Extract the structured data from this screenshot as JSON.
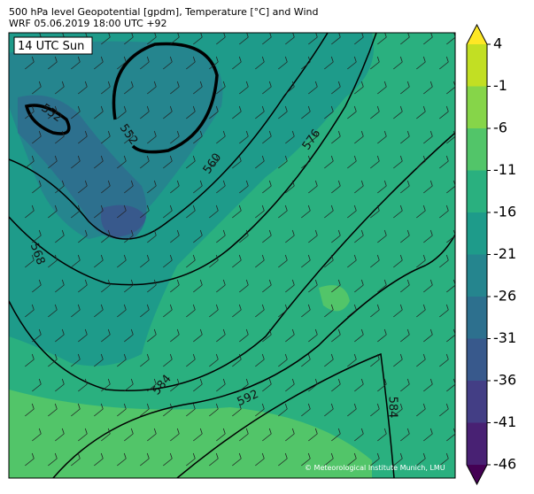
{
  "header": {
    "title": "500 hPa level Geopotential [gpdm], Temperature [°C] and Wind",
    "subtitle": "WRF 05.06.2019 18:00 UTC +92"
  },
  "map": {
    "time_label": "14 UTC Sun",
    "contour_labels": [
      552,
      552,
      560,
      568,
      576,
      584,
      592,
      584
    ],
    "credit": "© Meteorological Institute Munich, LMU"
  },
  "colorbar": {
    "lim": [
      -46,
      4
    ],
    "ticks": [
      4,
      -1,
      -6,
      -11,
      -16,
      -21,
      -26,
      -31,
      -36,
      -41,
      -46
    ],
    "colors": [
      "#440154",
      "#482173",
      "#433e85",
      "#38598c",
      "#2d708e",
      "#25858e",
      "#1e9b8a",
      "#2ab07f",
      "#52c569",
      "#86d549",
      "#c2df23",
      "#fde725"
    ]
  }
}
